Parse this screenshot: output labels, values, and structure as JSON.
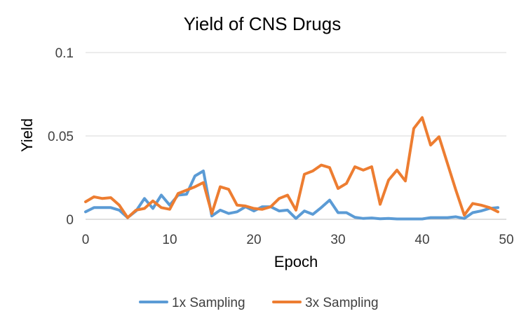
{
  "chart_data": {
    "type": "line",
    "title": "Yield of CNS Drugs",
    "xlabel": "Epoch",
    "ylabel": "Yield",
    "xlim": [
      0,
      50
    ],
    "ylim": [
      0,
      0.1
    ],
    "x_ticks": [
      "0",
      "10",
      "20",
      "30",
      "40",
      "50"
    ],
    "y_ticks": [
      "0",
      "0.05",
      "0.1"
    ],
    "grid": "horizontal",
    "legend": "bottom",
    "x": [
      0,
      1,
      2,
      3,
      4,
      5,
      6,
      7,
      8,
      9,
      10,
      11,
      12,
      13,
      14,
      15,
      16,
      17,
      18,
      19,
      20,
      21,
      22,
      23,
      24,
      25,
      26,
      27,
      28,
      29,
      30,
      31,
      32,
      33,
      34,
      35,
      36,
      37,
      38,
      39,
      40,
      41,
      42,
      43,
      44,
      45,
      46,
      47,
      48,
      49
    ],
    "series": [
      {
        "name": "1x Sampling",
        "color": "#5B9BD5",
        "values": [
          0.0045,
          0.007,
          0.007,
          0.007,
          0.0055,
          0.001,
          0.005,
          0.0125,
          0.0065,
          0.0145,
          0.0085,
          0.0145,
          0.015,
          0.026,
          0.029,
          0.002,
          0.0055,
          0.0035,
          0.0045,
          0.0075,
          0.005,
          0.0075,
          0.0075,
          0.005,
          0.0055,
          0.0005,
          0.005,
          0.003,
          0.007,
          0.0115,
          0.004,
          0.004,
          0.0012,
          0.0005,
          0.0008,
          0.0003,
          0.0005,
          0.0002,
          0.0002,
          0.0002,
          0.0002,
          0.001,
          0.001,
          0.001,
          0.0015,
          0.0005,
          0.004,
          0.005,
          0.0065,
          0.007
        ]
      },
      {
        "name": "3x Sampling",
        "color": "#ED7D31",
        "values": [
          0.0105,
          0.0135,
          0.0125,
          0.013,
          0.0085,
          0.001,
          0.0055,
          0.0065,
          0.011,
          0.007,
          0.006,
          0.0155,
          0.0175,
          0.0195,
          0.022,
          0.0035,
          0.0195,
          0.018,
          0.0085,
          0.008,
          0.0065,
          0.006,
          0.0075,
          0.0125,
          0.0145,
          0.0055,
          0.027,
          0.029,
          0.0325,
          0.031,
          0.0185,
          0.0215,
          0.0315,
          0.0295,
          0.0315,
          0.009,
          0.0235,
          0.0295,
          0.023,
          0.0545,
          0.061,
          0.0445,
          0.0495,
          0.0335,
          0.0175,
          0.0025,
          0.0095,
          0.0085,
          0.007,
          0.0045
        ]
      }
    ]
  }
}
